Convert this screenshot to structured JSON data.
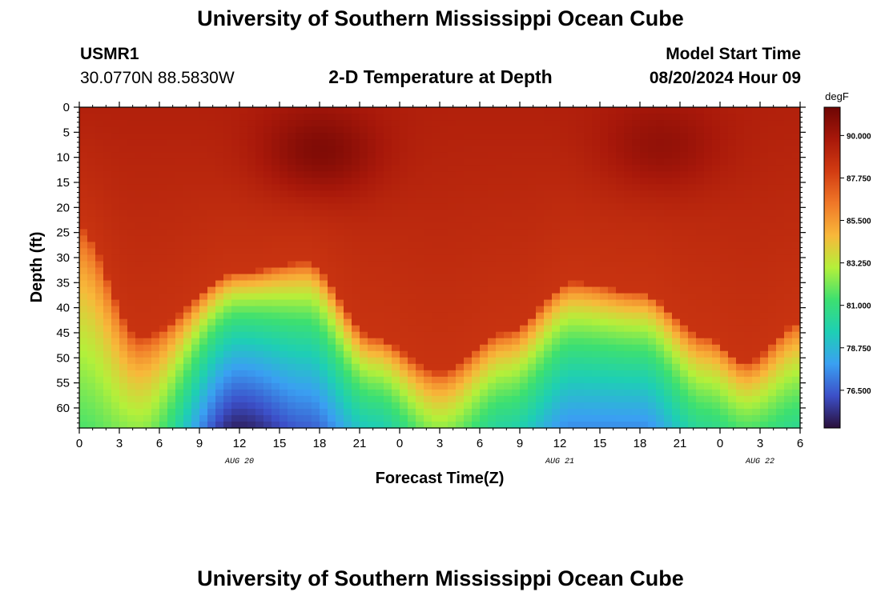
{
  "header": {
    "title": "University of Southern Mississippi Ocean Cube",
    "station_id": "USMR1",
    "coordinates": "30.0770N  88.5830W",
    "subtitle": "2-D Temperature at Depth",
    "model_start_label": "Model Start Time",
    "model_start_value": "08/20/2024 Hour 09"
  },
  "footer": {
    "title": "University of Southern Mississippi Ocean Cube"
  },
  "colors": {
    "colormap": [
      "#2a0f3a",
      "#3c4fc8",
      "#3aa0f2",
      "#1ecfb4",
      "#3de070",
      "#b4f03a",
      "#f8b83a",
      "#f07828",
      "#d23c12",
      "#a8180a",
      "#6e0604"
    ]
  },
  "chart_data": {
    "type": "heatmap",
    "title": "2-D Temperature at Depth",
    "xlabel": "Forecast Time(Z)",
    "ylabel": "Depth (ft)",
    "x_range_hours": [
      0,
      54
    ],
    "x_ticks": [
      {
        "h": 0,
        "label": "0"
      },
      {
        "h": 3,
        "label": "3"
      },
      {
        "h": 6,
        "label": "6"
      },
      {
        "h": 9,
        "label": "9"
      },
      {
        "h": 12,
        "label": "12"
      },
      {
        "h": 15,
        "label": "15"
      },
      {
        "h": 18,
        "label": "18"
      },
      {
        "h": 21,
        "label": "21"
      },
      {
        "h": 24,
        "label": "0"
      },
      {
        "h": 27,
        "label": "3"
      },
      {
        "h": 30,
        "label": "6"
      },
      {
        "h": 33,
        "label": "9"
      },
      {
        "h": 36,
        "label": "12"
      },
      {
        "h": 39,
        "label": "15"
      },
      {
        "h": 42,
        "label": "18"
      },
      {
        "h": 45,
        "label": "21"
      },
      {
        "h": 48,
        "label": "0"
      },
      {
        "h": 51,
        "label": "3"
      },
      {
        "h": 54,
        "label": "6"
      }
    ],
    "date_labels": [
      {
        "h": 12,
        "label": "AUG 20"
      },
      {
        "h": 36,
        "label": "AUG 21"
      },
      {
        "h": 51,
        "label": "AUG 22"
      }
    ],
    "y_range_ft": [
      0,
      64
    ],
    "y_ticks": [
      0,
      5,
      10,
      15,
      20,
      25,
      30,
      35,
      40,
      45,
      50,
      55,
      60
    ],
    "colorbar": {
      "unit": "degF",
      "range": [
        74.5,
        91.5
      ],
      "ticks": [
        {
          "value": 90.0,
          "label": "90.000"
        },
        {
          "value": 87.75,
          "label": "87.750"
        },
        {
          "value": 85.5,
          "label": "85.500"
        },
        {
          "value": 83.25,
          "label": "83.250"
        },
        {
          "value": 81.0,
          "label": "81.000"
        },
        {
          "value": 78.75,
          "label": "78.750"
        },
        {
          "value": 76.5,
          "label": "76.500"
        }
      ]
    },
    "field_features": {
      "surface_temp_degF": 89.4,
      "warm_cores": [
        {
          "hour": 18,
          "depth_ft": 9,
          "amp_degF": 1.8
        },
        {
          "hour": 43.5,
          "depth_ft": 8,
          "amp_degF": 1.2
        }
      ],
      "thermocline": [
        {
          "hour": 0,
          "top_ft": 24
        },
        {
          "hour": 4.5,
          "top_ft": 46
        },
        {
          "hour": 12,
          "top_ft": 33
        },
        {
          "hour": 17,
          "top_ft": 31
        },
        {
          "hour": 22,
          "top_ft": 46
        },
        {
          "hour": 27,
          "top_ft": 53
        },
        {
          "hour": 32,
          "top_ft": 45
        },
        {
          "hour": 37,
          "top_ft": 35
        },
        {
          "hour": 42,
          "top_ft": 37
        },
        {
          "hour": 47,
          "top_ft": 46
        },
        {
          "hour": 50,
          "top_ft": 51
        },
        {
          "hour": 54,
          "top_ft": 43
        }
      ],
      "bottom_temp_degF": [
        {
          "hour": 0,
          "degF": 81.5
        },
        {
          "hour": 4.5,
          "degF": 82.5
        },
        {
          "hour": 12,
          "degF": 75.0
        },
        {
          "hour": 17,
          "degF": 76.5
        },
        {
          "hour": 22,
          "degF": 79.5
        },
        {
          "hour": 27,
          "degF": 82.5
        },
        {
          "hour": 32,
          "degF": 80.0
        },
        {
          "hour": 37,
          "degF": 77.5
        },
        {
          "hour": 42,
          "degF": 77.5
        },
        {
          "hour": 47,
          "degF": 80.5
        },
        {
          "hour": 50,
          "degF": 81.5
        },
        {
          "hour": 54,
          "degF": 80.5
        }
      ]
    }
  }
}
